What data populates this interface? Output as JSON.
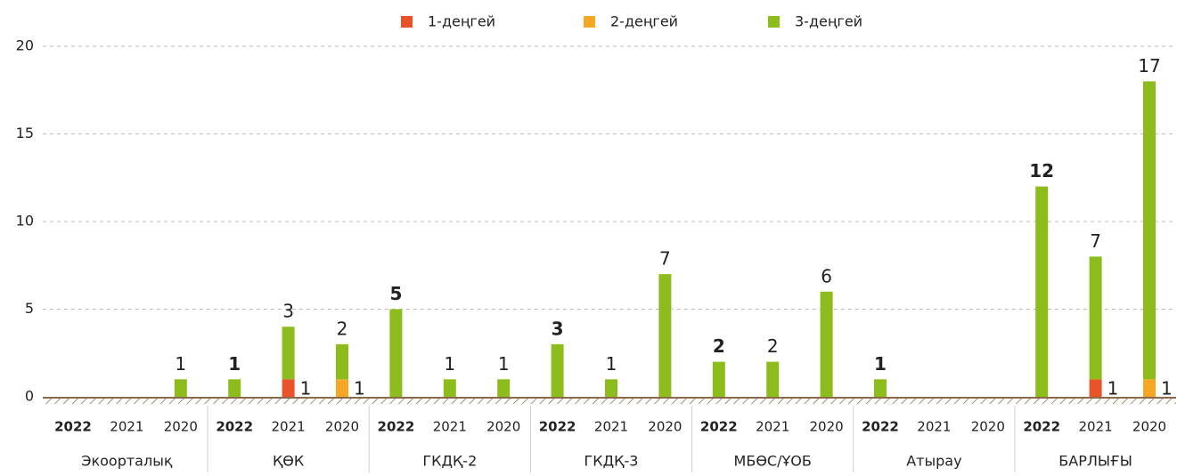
{
  "chart_data": {
    "type": "grouped_stacked_bar",
    "groups": [
      "Экоорталық",
      "ҚӨК",
      "ГКДҚ-2",
      "ГКДҚ-3",
      "МБӨС/ҰОБ",
      "Атырау",
      "БАРЛЫҒЫ"
    ],
    "categories": [
      "2022",
      "2021",
      "2020",
      "2022",
      "2021",
      "2020",
      "2022",
      "2021",
      "2020",
      "2022",
      "2021",
      "2020",
      "2022",
      "2021",
      "2020",
      "2022",
      "2021",
      "2020",
      "2022",
      "2021",
      "2020"
    ],
    "series": [
      {
        "name": "1-деңгей",
        "color": "#e8532a",
        "values": [
          null,
          null,
          null,
          null,
          1,
          null,
          null,
          null,
          null,
          null,
          null,
          null,
          null,
          null,
          null,
          null,
          null,
          null,
          null,
          1,
          null
        ]
      },
      {
        "name": "2-деңгей",
        "color": "#f5a623",
        "values": [
          null,
          null,
          null,
          null,
          null,
          1,
          null,
          null,
          null,
          null,
          null,
          null,
          null,
          null,
          null,
          null,
          null,
          null,
          null,
          null,
          1
        ]
      },
      {
        "name": "3-деңгей",
        "color": "#8cbd1c",
        "values": [
          null,
          null,
          1,
          1,
          3,
          2,
          5,
          1,
          1,
          3,
          1,
          7,
          2,
          2,
          6,
          1,
          null,
          null,
          12,
          7,
          17
        ]
      }
    ],
    "ylim": [
      0,
      20
    ],
    "yticks": [
      0,
      5,
      10,
      15,
      20
    ],
    "grid": true,
    "legend": "top"
  }
}
